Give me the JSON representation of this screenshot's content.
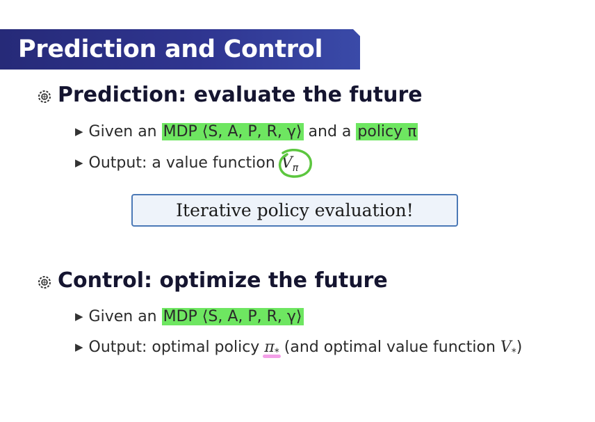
{
  "title": "Prediction and Control",
  "colors": {
    "title_bg": "#2f3590",
    "highlight": "#6ee661",
    "callout_border": "#4b79b6",
    "pen_green": "#5cc63f",
    "pen_pink": "#f07fe0"
  },
  "prediction": {
    "heading": "Prediction: evaluate the future",
    "given": {
      "prefix": "Given an",
      "mdp": "MDP ⟨S, A, P, R, γ⟩",
      "middle": "and a",
      "policy": "policy π"
    },
    "output": {
      "prefix": "Output: a value function",
      "v": "V",
      "v_sub": "π"
    }
  },
  "callout": "Iterative policy evaluation!",
  "control": {
    "heading": "Control: optimize the future",
    "given": {
      "prefix": "Given an",
      "mdp": "MDP ⟨S, A, P, R, γ⟩"
    },
    "output": {
      "prefix": "Output: optimal policy",
      "pi": "π",
      "pi_sub": "*",
      "middle": "(and optimal value function",
      "v": "V",
      "v_sub": "*",
      "suffix": ")"
    }
  },
  "icons": {
    "bullet": "gear-bullet-icon",
    "sub_bullet": "triangle-right-icon"
  }
}
